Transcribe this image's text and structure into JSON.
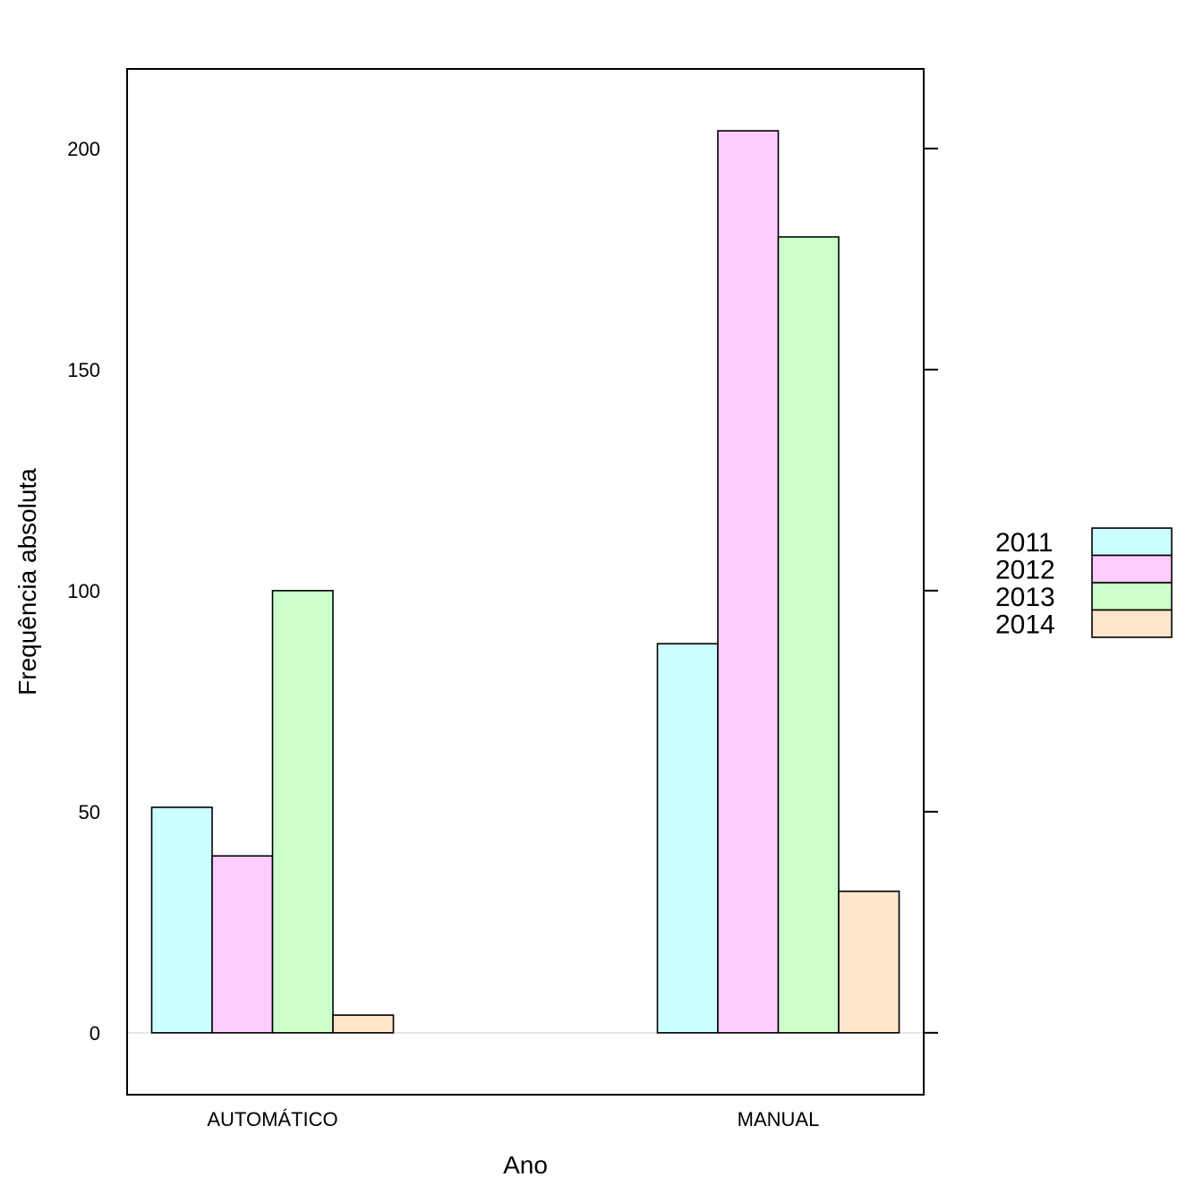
{
  "chart_data": {
    "type": "bar",
    "categories": [
      "AUTOMÁTICO",
      "MANUAL"
    ],
    "series": [
      {
        "name": "2011",
        "values": [
          51,
          88
        ],
        "color": "#ccffff"
      },
      {
        "name": "2012",
        "values": [
          40,
          204
        ],
        "color": "#ffccff"
      },
      {
        "name": "2013",
        "values": [
          100,
          180
        ],
        "color": "#ccffcc"
      },
      {
        "name": "2014",
        "values": [
          4,
          32
        ],
        "color": "#ffe5cc"
      }
    ],
    "title": "",
    "xlabel": "Ano",
    "ylabel": "Frequência absoluta",
    "ylim": [
      -14,
      218
    ],
    "yticks": [
      0,
      50,
      100,
      150,
      200
    ],
    "yticks_labels": [
      "0",
      "50",
      "100",
      "150",
      "200"
    ],
    "grid": false,
    "reference_line": 0,
    "legend_position": "right"
  }
}
